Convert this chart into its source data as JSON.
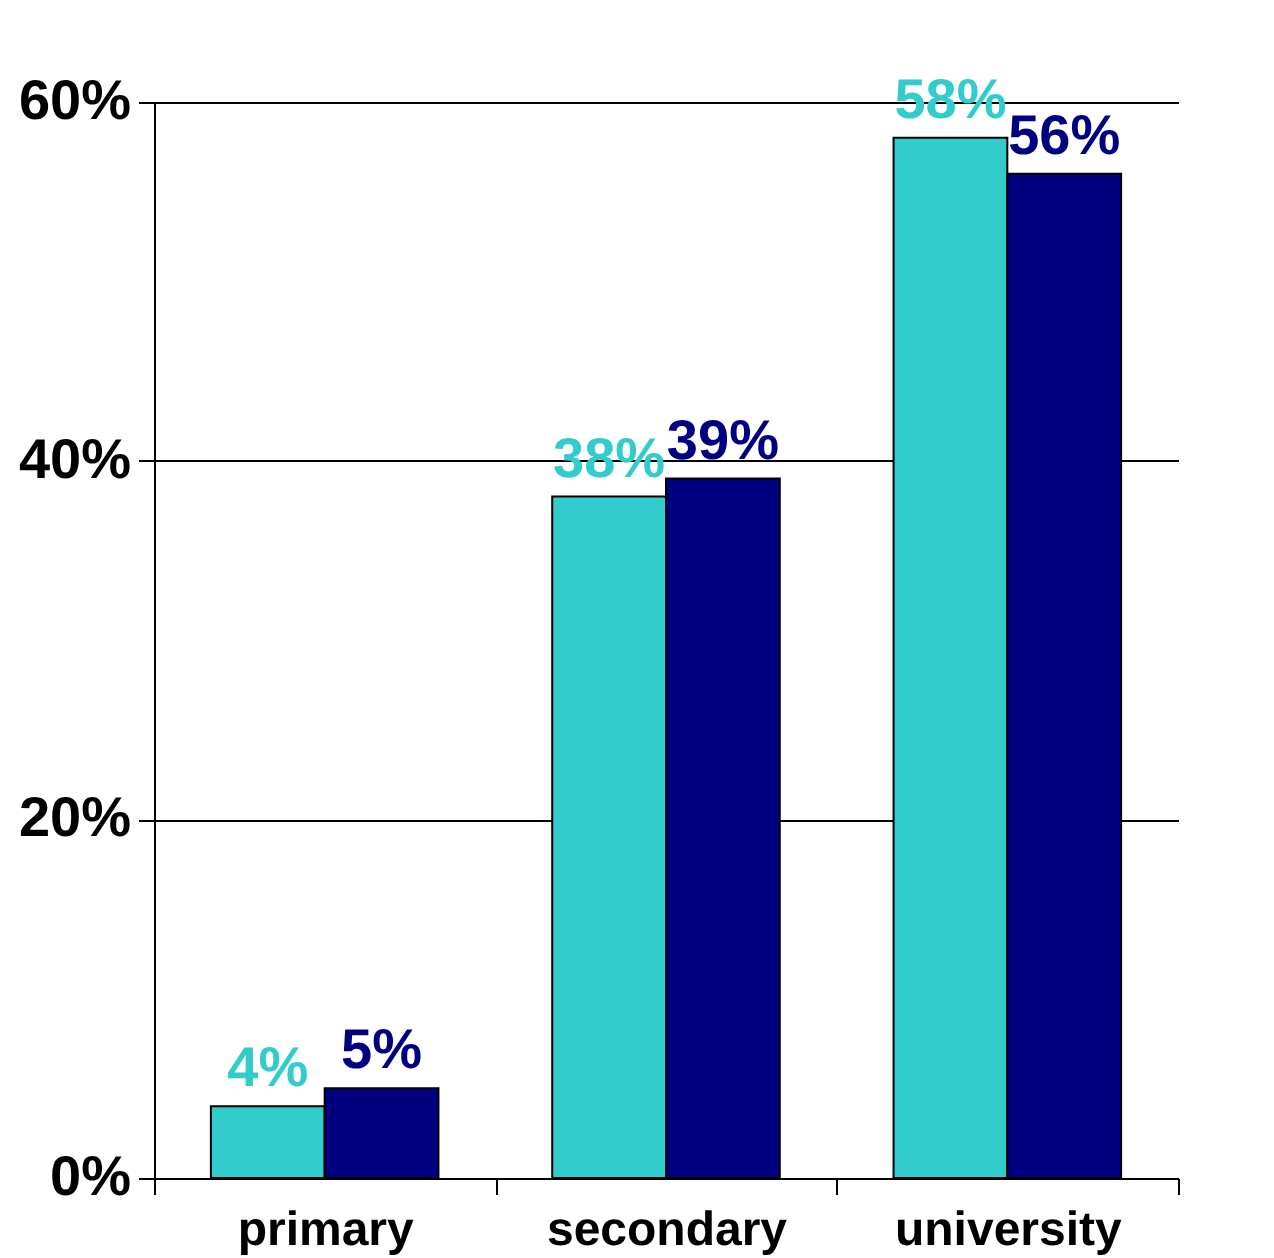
{
  "chart_data": {
    "type": "bar",
    "categories": [
      "primary",
      "secondary",
      "university"
    ],
    "series": [
      {
        "color": "#33cccc",
        "values": [
          4,
          38,
          58
        ],
        "value_labels": [
          "4%",
          "38%",
          "58%"
        ]
      },
      {
        "color": "#000080",
        "values": [
          5,
          39,
          56
        ],
        "value_labels": [
          "5%",
          "39%",
          "56%"
        ]
      }
    ],
    "ylim": [
      0,
      60
    ],
    "yticks": [
      {
        "value": 0,
        "label": "0%"
      },
      {
        "value": 20,
        "label": "20%"
      },
      {
        "value": 40,
        "label": "40%"
      },
      {
        "value": 60,
        "label": "60%"
      }
    ],
    "grid": "y",
    "legend": false
  }
}
